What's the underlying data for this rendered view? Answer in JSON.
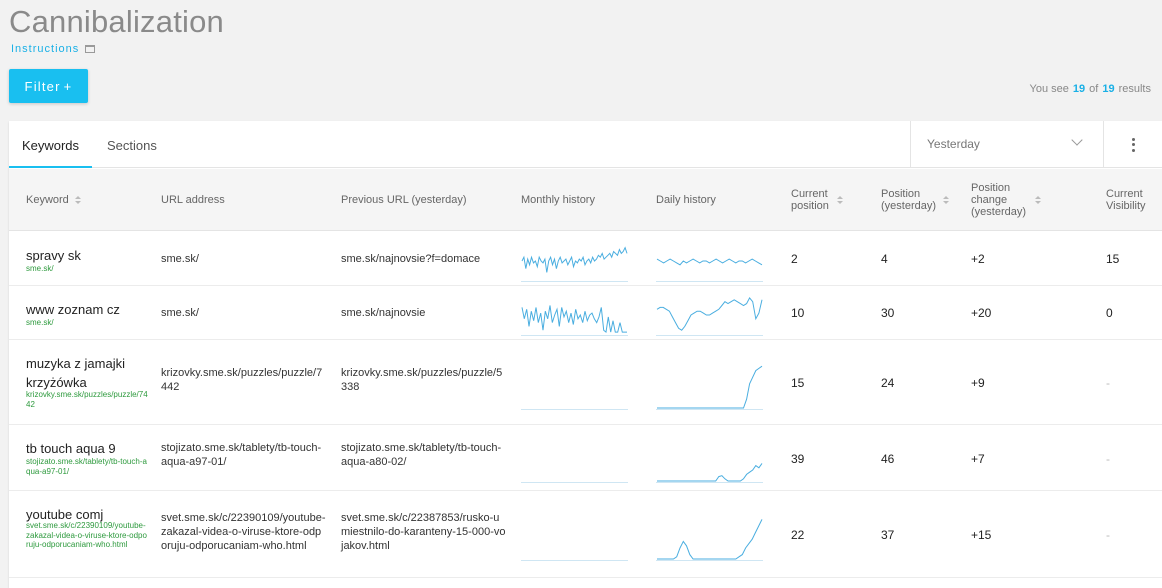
{
  "page": {
    "title": "Cannibalization",
    "instructions_label": "Instructions",
    "filter_label": "Filter",
    "filter_plus": "+",
    "results_prefix": "You see",
    "results_shown": "19",
    "results_of": "of",
    "results_total": "19",
    "results_suffix": "results"
  },
  "tabs": {
    "keywords": "Keywords",
    "sections": "Sections"
  },
  "date_select": {
    "value": "Yesterday"
  },
  "columns": {
    "keyword": "Keyword",
    "url": "URL address",
    "prev_url": "Previous URL (yesterday)",
    "monthly": "Monthly history",
    "daily": "Daily history",
    "current_position": "Current position",
    "position_yesterday": "Position (yesterday)",
    "position_change": "Position change (yesterday)",
    "current_visibility": "Current Visibility"
  },
  "rows": [
    {
      "keyword": "spravy sk",
      "keyword_url": "sme.sk/",
      "url": "sme.sk/",
      "prev_url": "sme.sk/najnovsie?f=domace",
      "current_position": "2",
      "position_yesterday": "4",
      "position_change": "+2",
      "visibility": "15",
      "monthly": [
        0.5,
        0.6,
        0.3,
        0.55,
        0.4,
        0.6,
        0.45,
        0.5,
        0.35,
        0.6,
        0.5,
        0.45,
        0.55,
        0.2,
        0.5,
        0.6,
        0.4,
        0.55,
        0.3,
        0.5,
        0.6,
        0.45,
        0.5,
        0.55,
        0.4,
        0.5,
        0.6,
        0.35,
        0.5,
        0.45,
        0.55,
        0.5,
        0.6,
        0.4,
        0.5,
        0.55,
        0.45,
        0.6,
        0.5,
        0.55,
        0.65,
        0.6,
        0.7,
        0.55,
        0.6,
        0.65,
        0.7,
        0.6,
        0.75,
        0.7,
        0.65,
        0.8,
        0.7,
        0.75,
        0.85,
        0.7
      ],
      "daily": [
        0.55,
        0.5,
        0.45,
        0.5,
        0.55,
        0.5,
        0.45,
        0.4,
        0.5,
        0.45,
        0.5,
        0.55,
        0.5,
        0.45,
        0.5,
        0.5,
        0.45,
        0.5,
        0.55,
        0.5,
        0.45,
        0.5,
        0.55,
        0.5,
        0.45,
        0.5,
        0.5,
        0.45,
        0.5,
        0.55,
        0.5,
        0.45,
        0.4
      ]
    },
    {
      "keyword": "www zoznam cz",
      "keyword_url": "sme.sk/",
      "url": "sme.sk/",
      "prev_url": "sme.sk/najnovsie",
      "current_position": "10",
      "position_yesterday": "30",
      "position_change": "+20",
      "visibility": "0",
      "monthly": [
        0.7,
        0.4,
        0.65,
        0.2,
        0.6,
        0.35,
        0.7,
        0.3,
        0.55,
        0.1,
        0.6,
        0.4,
        0.75,
        0.3,
        0.5,
        0.65,
        0.2,
        0.7,
        0.45,
        0.6,
        0.3,
        0.55,
        0.25,
        0.65,
        0.4,
        0.5,
        0.3,
        0.6,
        0.35,
        0.5,
        0.55,
        0.4,
        0.3,
        0.45,
        0.7,
        0.1,
        0.05,
        0.45,
        0.05,
        0.35,
        0.05,
        0.05,
        0.3,
        0.05,
        0.05,
        0.05
      ],
      "daily": [
        0.65,
        0.7,
        0.7,
        0.65,
        0.6,
        0.45,
        0.3,
        0.15,
        0.1,
        0.2,
        0.35,
        0.5,
        0.55,
        0.6,
        0.6,
        0.55,
        0.5,
        0.5,
        0.55,
        0.6,
        0.65,
        0.75,
        0.85,
        0.8,
        0.85,
        0.9,
        0.85,
        0.8,
        0.75,
        0.8,
        0.95,
        0.85,
        0.4,
        0.55,
        0.9
      ]
    },
    {
      "keyword": "muzyka z jamajki krzyżówka",
      "keyword_url": "krizovky.sme.sk/puzzles/puzzle/7442",
      "url": "krizovky.sme.sk/puzzles/puzzle/7442",
      "prev_url": "krizovky.sme.sk/puzzles/puzzle/5338",
      "current_position": "15",
      "position_yesterday": "24",
      "position_change": "+9",
      "visibility": "-",
      "monthly": [],
      "daily": [
        0,
        0,
        0,
        0,
        0,
        0,
        0,
        0,
        0,
        0,
        0,
        0,
        0,
        0,
        0,
        0,
        0,
        0,
        0,
        0,
        0,
        0,
        0,
        0,
        0,
        0,
        0,
        0,
        0,
        0.2,
        0.55,
        0.7,
        0.85,
        0.9,
        0.95
      ]
    },
    {
      "keyword": "tb touch aqua 9",
      "keyword_url": "stojizato.sme.sk/tablety/tb-touch-aqua-a97-01/",
      "url": "stojizato.sme.sk/tablety/tb-touch-aqua-a97-01/",
      "prev_url": "stojizato.sme.sk/tablety/tb-touch-aqua-a80-02/",
      "current_position": "39",
      "position_yesterday": "46",
      "position_change": "+7",
      "visibility": "-",
      "monthly": [],
      "daily": [
        0,
        0,
        0,
        0,
        0,
        0,
        0,
        0,
        0,
        0,
        0,
        0,
        0,
        0,
        0,
        0,
        0,
        0,
        0,
        0,
        0.1,
        0.12,
        0.05,
        0,
        0,
        0,
        0,
        0,
        0.05,
        0.15,
        0.2,
        0.25,
        0.35,
        0.3,
        0.4
      ]
    },
    {
      "keyword": "youtube comj",
      "keyword_url": "svet.sme.sk/c/22390109/youtube-zakazal-videa-o-viruse-ktore-odporuju-odporucaniam-who.html",
      "url": "svet.sme.sk/c/22390109/youtube-zakazal-videa-o-viruse-ktore-odporuju-odporucaniam-who.html",
      "prev_url": "svet.sme.sk/c/22387853/rusko-umiestnilo-do-karanteny-15-000-vojakov.html",
      "current_position": "22",
      "position_yesterday": "37",
      "position_change": "+15",
      "visibility": "-",
      "monthly": [],
      "daily": [
        0,
        0,
        0,
        0,
        0,
        0,
        0.05,
        0.25,
        0.4,
        0.3,
        0.1,
        0,
        0,
        0,
        0,
        0,
        0,
        0,
        0,
        0,
        0,
        0,
        0,
        0,
        0,
        0.05,
        0.1,
        0.25,
        0.35,
        0.45,
        0.6,
        0.75,
        0.9
      ]
    }
  ],
  "colors": {
    "accent": "#19bff0",
    "link": "#1ab0e6",
    "url_green": "#2e9a3e",
    "spark": "#4aaee0"
  },
  "icons": {
    "instructions": "book-icon",
    "sort": "sort-icon",
    "chevron": "chevron-down-icon",
    "more": "more-vertical-icon"
  }
}
